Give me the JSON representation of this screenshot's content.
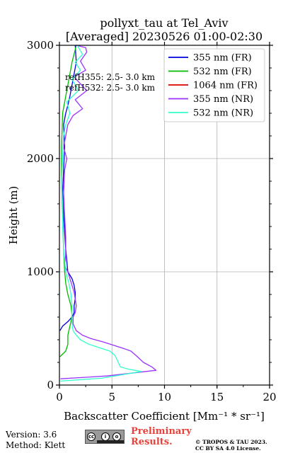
{
  "chart_data": {
    "type": "line",
    "title_line1": "pollyxt_tau at Tel_Aviv",
    "title_line2": "[Averaged] 20230526 01:00-02:30",
    "xlabel": "Backscatter Coefficient [Mm⁻¹ * sr⁻¹]",
    "ylabel": "Height (m)",
    "xlim": [
      0,
      20
    ],
    "ylim": [
      0,
      3000
    ],
    "xticks": [
      0,
      5,
      10,
      15,
      20
    ],
    "yticks": [
      0,
      1000,
      2000,
      3000
    ],
    "grid": true,
    "legend_position": "top-right",
    "annotations": [
      "refH355:  2.5- 3.0 km",
      "refH532:  2.5- 3.0 km"
    ],
    "series": [
      {
        "name": "355 nm (FR)",
        "color": "#0000dd",
        "points": [
          [
            0.05,
            480
          ],
          [
            0.3,
            520
          ],
          [
            0.8,
            560
          ],
          [
            1.2,
            600
          ],
          [
            1.4,
            640
          ],
          [
            1.4,
            700
          ],
          [
            1.5,
            760
          ],
          [
            1.5,
            820
          ],
          [
            1.4,
            880
          ],
          [
            1.2,
            940
          ],
          [
            0.8,
            1000
          ],
          [
            0.7,
            1100
          ],
          [
            0.6,
            1200
          ],
          [
            0.5,
            1350
          ],
          [
            0.4,
            1500
          ],
          [
            0.3,
            1700
          ],
          [
            0.4,
            1900
          ],
          [
            0.5,
            2100
          ],
          [
            0.4,
            2300
          ],
          [
            0.6,
            2400
          ],
          [
            0.8,
            2470
          ],
          [
            1.0,
            2550
          ],
          [
            1.3,
            2700
          ],
          [
            1.6,
            2850
          ],
          [
            1.5,
            3000
          ]
        ]
      },
      {
        "name": "532 nm (FR)",
        "color": "#00bb00",
        "points": [
          [
            0.05,
            250
          ],
          [
            0.6,
            300
          ],
          [
            0.8,
            360
          ],
          [
            0.8,
            440
          ],
          [
            1.0,
            520
          ],
          [
            1.1,
            560
          ],
          [
            1.2,
            620
          ],
          [
            1.1,
            700
          ],
          [
            0.8,
            800
          ],
          [
            0.6,
            900
          ],
          [
            0.5,
            1000
          ],
          [
            0.4,
            1200
          ],
          [
            0.3,
            1500
          ],
          [
            0.2,
            1800
          ],
          [
            0.2,
            2100
          ],
          [
            0.3,
            2400
          ],
          [
            0.6,
            2550
          ],
          [
            0.9,
            2700
          ],
          [
            1.2,
            2850
          ],
          [
            1.6,
            3000
          ]
        ]
      },
      {
        "name": "1064 nm (FR)",
        "color": "#dd0000",
        "points": []
      },
      {
        "name": "355 nm (NR)",
        "color": "#9933ff",
        "points": [
          [
            0.1,
            55
          ],
          [
            4.5,
            80
          ],
          [
            9.2,
            130
          ],
          [
            8.8,
            160
          ],
          [
            8.0,
            200
          ],
          [
            7.3,
            260
          ],
          [
            6.8,
            300
          ],
          [
            6.2,
            320
          ],
          [
            5.2,
            350
          ],
          [
            4.2,
            380
          ],
          [
            3.0,
            410
          ],
          [
            2.2,
            440
          ],
          [
            1.6,
            480
          ],
          [
            1.3,
            540
          ],
          [
            1.3,
            600
          ],
          [
            1.5,
            640
          ],
          [
            1.6,
            700
          ],
          [
            1.5,
            760
          ],
          [
            1.4,
            820
          ],
          [
            1.2,
            880
          ],
          [
            1.0,
            940
          ],
          [
            0.8,
            1000
          ],
          [
            0.5,
            1050
          ],
          [
            0.6,
            1150
          ],
          [
            0.6,
            1300
          ],
          [
            0.5,
            1500
          ],
          [
            0.4,
            1700
          ],
          [
            0.5,
            1900
          ],
          [
            0.7,
            2000
          ],
          [
            0.4,
            2100
          ],
          [
            0.6,
            2200
          ],
          [
            0.8,
            2300
          ],
          [
            1.3,
            2380
          ],
          [
            2.2,
            2440
          ],
          [
            1.5,
            2520
          ],
          [
            2.6,
            2600
          ],
          [
            1.8,
            2680
          ],
          [
            1.4,
            2720
          ],
          [
            2.5,
            2780
          ],
          [
            2.0,
            2860
          ],
          [
            2.6,
            2940
          ],
          [
            2.5,
            2980
          ],
          [
            1.6,
            3000
          ]
        ]
      },
      {
        "name": "532 nm (NR)",
        "color": "#33ffcc",
        "points": [
          [
            0.1,
            35
          ],
          [
            4.0,
            60
          ],
          [
            7.8,
            120
          ],
          [
            6.6,
            140
          ],
          [
            5.8,
            160
          ],
          [
            5.6,
            200
          ],
          [
            5.3,
            260
          ],
          [
            4.8,
            300
          ],
          [
            3.8,
            330
          ],
          [
            2.8,
            360
          ],
          [
            2.0,
            400
          ],
          [
            1.6,
            440
          ],
          [
            1.3,
            480
          ],
          [
            1.2,
            540
          ],
          [
            1.2,
            600
          ],
          [
            1.2,
            700
          ],
          [
            1.1,
            800
          ],
          [
            0.9,
            900
          ],
          [
            0.6,
            1000
          ],
          [
            0.5,
            1100
          ],
          [
            0.4,
            1200
          ],
          [
            0.3,
            1400
          ],
          [
            0.3,
            1600
          ],
          [
            0.2,
            1800
          ],
          [
            0.3,
            2000
          ],
          [
            0.4,
            2200
          ],
          [
            0.6,
            2300
          ],
          [
            1.0,
            2400
          ],
          [
            0.7,
            2500
          ],
          [
            1.8,
            2600
          ],
          [
            1.2,
            2700
          ],
          [
            2.0,
            2780
          ],
          [
            1.5,
            2850
          ],
          [
            2.2,
            2920
          ],
          [
            1.7,
            3000
          ]
        ]
      }
    ]
  },
  "footer": {
    "version": "Version: 3.6",
    "method": "Method: Klett",
    "preliminary_line1": "Preliminary",
    "preliminary_line2": "Results.",
    "copyright_line1": "© TROPOS & TAU 2023.",
    "copyright_line2": "CC BY SA 4.0 License."
  }
}
